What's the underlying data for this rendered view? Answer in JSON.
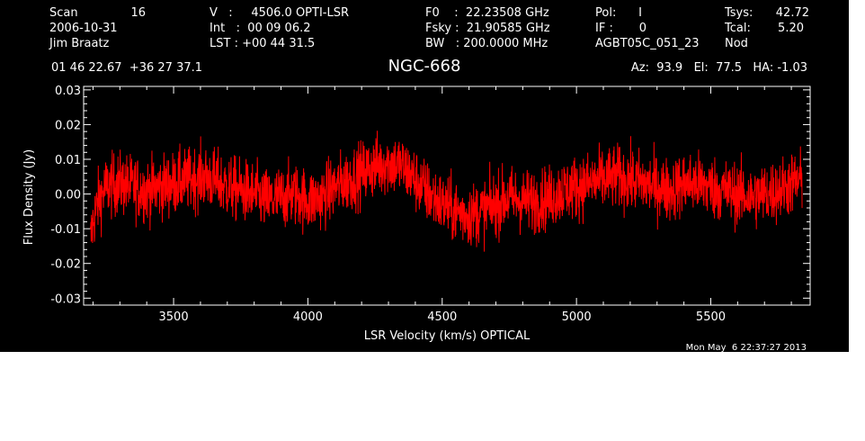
{
  "header": {
    "col1": [
      "Scan",
      "2006-10-31",
      "Jim Braatz"
    ],
    "scan_number": "16",
    "col2": [
      "V   :     4506.0 OPTI-LSR",
      "Int   :  00 09 06.2",
      "LST : +00 44 31.5"
    ],
    "col3": [
      "F0    :  22.23508 GHz",
      "Fsky :  21.90585 GHz",
      "BW   : 200.0000 MHz"
    ],
    "col4": [
      "Pol:      I",
      "IF :       0",
      "AGBT05C_051_23"
    ],
    "col5_labels": [
      "Tsys:",
      "Tcal:",
      "Nod"
    ],
    "col5_values": [
      "42.72",
      "5.20",
      ""
    ],
    "coords": "01 46 22.67  +36 27 37.1",
    "source": "NGC-668",
    "pointing": "Az:  93.9   El:  77.5   HA: -1.03",
    "timestamp": "Mon May  6 22:37:27 2013"
  },
  "colors": {
    "background": "#000000",
    "trace": "#ff0000",
    "text": "#ffffff"
  },
  "chart_data": {
    "type": "line",
    "title": "NGC-668",
    "xlabel": "LSR Velocity (km/s) OPTICAL",
    "ylabel": "Flux Density (Jy)",
    "xlim": [
      3165,
      5870
    ],
    "ylim": [
      -0.032,
      0.031
    ],
    "xticks": [
      3500,
      4000,
      4500,
      5000,
      5500
    ],
    "xtick_labels": [
      "3500",
      "4000",
      "4500",
      "5000",
      "5500"
    ],
    "yticks": [
      -0.03,
      -0.02,
      -0.01,
      0.0,
      0.01,
      0.02,
      0.03
    ],
    "ytick_labels": [
      "-0.03",
      "-0.02",
      "-0.01",
      "0.00",
      "0.01",
      "0.02",
      "0.03"
    ],
    "grid": false,
    "series": [
      {
        "color": "#ff0000",
        "noise_sigma": 0.0045,
        "x": [
          3190,
          3200,
          3220,
          3250,
          3300,
          3350,
          3400,
          3450,
          3500,
          3550,
          3600,
          3650,
          3700,
          3750,
          3800,
          3850,
          3900,
          3950,
          4000,
          4050,
          4100,
          4150,
          4200,
          4250,
          4300,
          4350,
          4400,
          4450,
          4500,
          4550,
          4600,
          4650,
          4700,
          4750,
          4800,
          4850,
          4900,
          4950,
          5000,
          5050,
          5100,
          5150,
          5200,
          5250,
          5300,
          5350,
          5400,
          5450,
          5500,
          5550,
          5600,
          5650,
          5700,
          5750,
          5800,
          5840
        ],
        "y": [
          -0.014,
          -0.008,
          -0.002,
          0.002,
          0.003,
          0.002,
          0.001,
          0.002,
          0.003,
          0.004,
          0.005,
          0.004,
          0.002,
          0.001,
          0.0,
          -0.002,
          -0.001,
          0.0,
          -0.002,
          -0.001,
          0.002,
          0.004,
          0.006,
          0.008,
          0.009,
          0.008,
          0.004,
          0.0,
          -0.003,
          -0.005,
          -0.006,
          -0.005,
          -0.003,
          -0.001,
          -0.002,
          -0.002,
          -0.001,
          0.001,
          0.002,
          0.003,
          0.004,
          0.005,
          0.004,
          0.003,
          0.002,
          0.001,
          0.003,
          0.003,
          0.002,
          0.001,
          0.0,
          -0.001,
          0.0,
          0.001,
          0.003,
          0.004
        ]
      }
    ]
  }
}
